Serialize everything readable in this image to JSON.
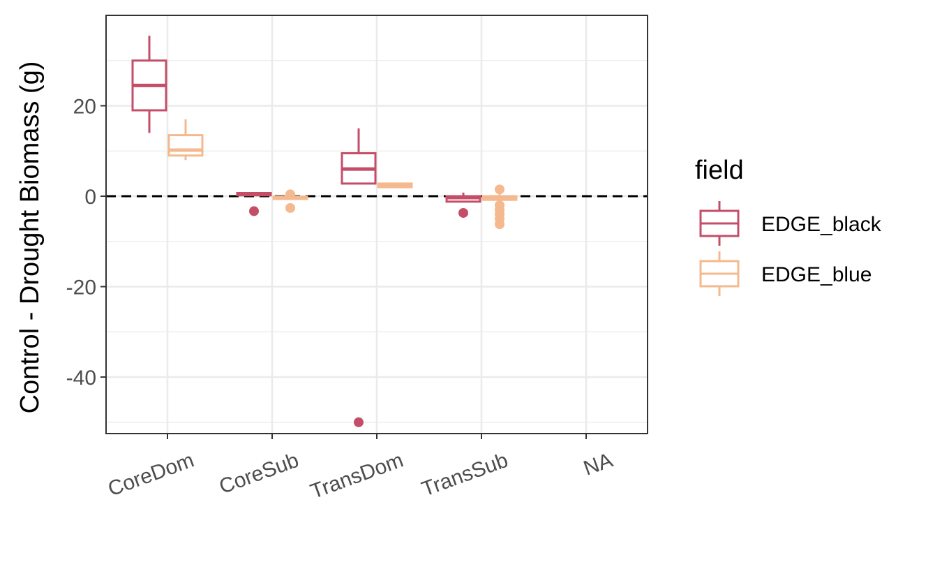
{
  "chart_data": {
    "type": "box",
    "xlabel": "",
    "ylabel": "Control - Drought Biomass (g)",
    "ylim": [
      -52.5,
      40
    ],
    "yticks": [
      -40,
      -20,
      0,
      20
    ],
    "grid": true,
    "categories": [
      "CoreDom",
      "CoreSub",
      "TransDom",
      "TransSub",
      "NA"
    ],
    "reference_line": {
      "y": 0,
      "style": "dashed",
      "color": "#000000"
    },
    "legend": {
      "title": "field",
      "placement": "right"
    },
    "series": [
      {
        "name": "EDGE_black",
        "color": "#C44E68",
        "boxes": [
          {
            "category": "CoreDom",
            "min": 14,
            "q1": 19,
            "median": 24.5,
            "q3": 30,
            "max": 35.5,
            "outliers": []
          },
          {
            "category": "CoreSub",
            "min": 0.2,
            "q1": 0.2,
            "median": 0.4,
            "q3": 0.7,
            "max": 0.8,
            "outliers": [
              -3.3
            ]
          },
          {
            "category": "TransDom",
            "min": 2.8,
            "q1": 2.8,
            "median": 6,
            "q3": 9.5,
            "max": 15,
            "outliers": [
              -50
            ]
          },
          {
            "category": "TransSub",
            "min": -1.2,
            "q1": -1.2,
            "median": -0.3,
            "q3": 0,
            "max": 0.8,
            "outliers": [
              -3.7
            ]
          }
        ]
      },
      {
        "name": "EDGE_blue",
        "color": "#F4B98E",
        "boxes": [
          {
            "category": "CoreDom",
            "min": 8,
            "q1": 9,
            "median": 10.2,
            "q3": 13.5,
            "max": 17,
            "outliers": []
          },
          {
            "category": "CoreSub",
            "min": -0.6,
            "q1": -0.6,
            "median": -0.3,
            "q3": -0.1,
            "max": -0.1,
            "outliers": [
              0.4,
              -2.6
            ]
          },
          {
            "category": "TransDom",
            "min": 2,
            "q1": 2,
            "median": 2.4,
            "q3": 2.8,
            "max": 2.8,
            "outliers": []
          },
          {
            "category": "TransSub",
            "min": -0.8,
            "q1": -0.8,
            "median": -0.4,
            "q3": 0,
            "max": 0.6,
            "outliers": [
              1.5,
              -2,
              -3,
              -4,
              -5,
              -6.2
            ]
          }
        ]
      }
    ]
  }
}
